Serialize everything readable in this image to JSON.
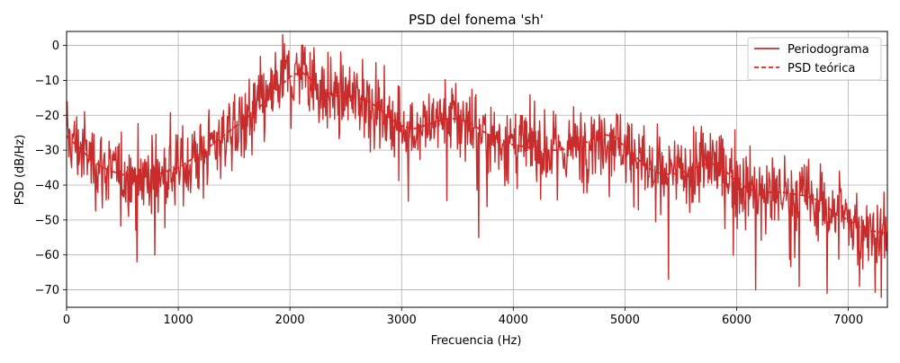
{
  "chart_data": {
    "type": "line",
    "title": "PSD del fonema 'sh'",
    "xlabel": "Frecuencia (Hz)",
    "ylabel": "PSD (dB/Hz)",
    "xlim": [
      0,
      7350
    ],
    "ylim": [
      -75,
      4
    ],
    "xticks": [
      0,
      1000,
      2000,
      3000,
      4000,
      5000,
      6000,
      7000
    ],
    "yticks": [
      0,
      -10,
      -20,
      -30,
      -40,
      -50,
      -60,
      -70
    ],
    "grid": true,
    "legend_position": "top-right",
    "series": [
      {
        "name": "Periodograma",
        "style": "solid",
        "color": "#c62d2d",
        "noise_std_db": 5.5,
        "peaks": [
          {
            "x": 1950,
            "y": 0.5
          },
          {
            "x": 2130,
            "y": -3
          },
          {
            "x": 2180,
            "y": -2
          },
          {
            "x": 2650,
            "y": -4
          },
          {
            "x": 3080,
            "y": -17
          },
          {
            "x": 4930,
            "y": -20
          },
          {
            "x": 6380,
            "y": -36
          },
          {
            "x": 6920,
            "y": -36
          }
        ],
        "troughs": [
          {
            "x": 630,
            "y": -62
          },
          {
            "x": 790,
            "y": -60
          },
          {
            "x": 3690,
            "y": -55
          },
          {
            "x": 5390,
            "y": -67
          },
          {
            "x": 6170,
            "y": -70
          },
          {
            "x": 6560,
            "y": -69
          },
          {
            "x": 6810,
            "y": -71
          },
          {
            "x": 7100,
            "y": -69
          }
        ]
      },
      {
        "name": "PSD teórica",
        "style": "dashed",
        "color": "#e8201d",
        "x": [
          0,
          100,
          200,
          300,
          400,
          500,
          600,
          700,
          800,
          900,
          1000,
          1100,
          1200,
          1300,
          1400,
          1500,
          1600,
          1700,
          1800,
          1900,
          2000,
          2100,
          2200,
          2300,
          2400,
          2500,
          2600,
          2700,
          2800,
          2900,
          3000,
          3100,
          3200,
          3300,
          3400,
          3500,
          3600,
          3700,
          3800,
          3900,
          4000,
          4100,
          4200,
          4300,
          4400,
          4500,
          4600,
          4700,
          4800,
          4900,
          5000,
          5100,
          5200,
          5300,
          5400,
          5500,
          5600,
          5700,
          5800,
          5900,
          6000,
          6100,
          6200,
          6300,
          6400,
          6500,
          6600,
          6700,
          6800,
          6900,
          7000,
          7100,
          7200,
          7350
        ],
        "y": [
          -26,
          -29,
          -32,
          -34.5,
          -36,
          -37,
          -37.5,
          -37.5,
          -37,
          -36,
          -35,
          -33,
          -31,
          -28.5,
          -26,
          -23.5,
          -21,
          -18.5,
          -15.5,
          -12,
          -9,
          -7.5,
          -10,
          -13,
          -14.5,
          -14.5,
          -15,
          -16,
          -18,
          -21,
          -23,
          -24,
          -23,
          -22,
          -21,
          -21,
          -22,
          -24,
          -26,
          -27.5,
          -28.5,
          -29,
          -29.5,
          -30,
          -30,
          -29.5,
          -28.5,
          -27,
          -25.5,
          -26,
          -29,
          -32,
          -35,
          -36.5,
          -37,
          -36.5,
          -35.5,
          -34,
          -34,
          -36,
          -39,
          -41,
          -42,
          -42,
          -42,
          -42.5,
          -43,
          -44,
          -46,
          -48.5,
          -50,
          -52,
          -53,
          -54
        ]
      }
    ]
  }
}
